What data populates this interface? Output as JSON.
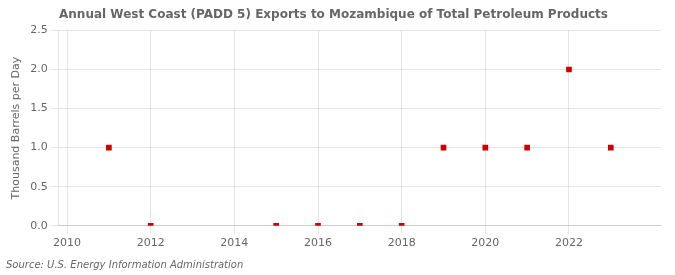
{
  "chart_data": {
    "type": "scatter",
    "title": "Annual West Coast (PADD 5) Exports to Mozambique of Total Petroleum Products",
    "ylabel": "Thousand Barrels per Day",
    "source": "Source: U.S. Energy Information Administration",
    "x": [
      2011,
      2012,
      2015,
      2016,
      2017,
      2018,
      2019,
      2020,
      2021,
      2022,
      2023
    ],
    "values": [
      1.0,
      0.0,
      0.0,
      0.0,
      0.0,
      0.0,
      1.0,
      1.0,
      1.0,
      2.0,
      1.0
    ],
    "color": "#cc0000",
    "marker": "square",
    "xlim": [
      2009.8,
      2024.2
    ],
    "xticks": [
      2010,
      2012,
      2014,
      2016,
      2018,
      2020,
      2022
    ],
    "ylim": [
      0,
      2.5
    ],
    "yticks": [
      {
        "value": 0,
        "label": "0.0"
      },
      0.5,
      {
        "value": 1,
        "label": "1.0"
      },
      1.5,
      {
        "value": 2,
        "label": "2.0"
      },
      2.5
    ],
    "grid": true
  }
}
